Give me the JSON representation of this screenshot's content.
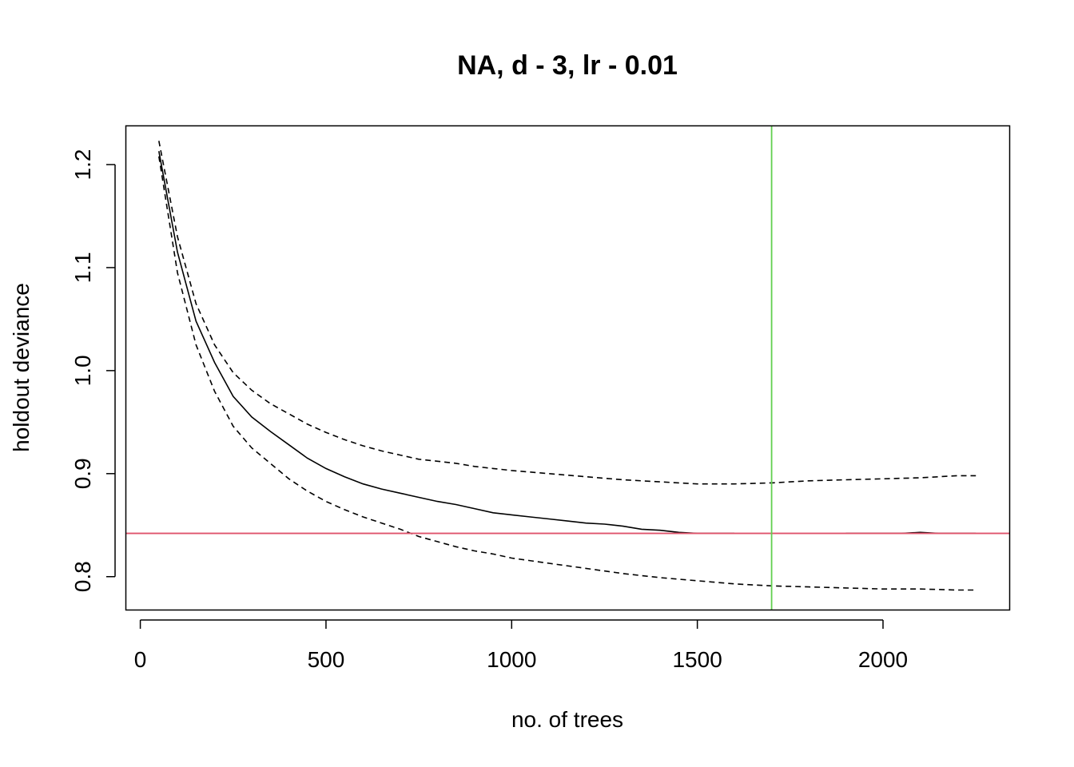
{
  "chart_data": {
    "type": "line",
    "title": "NA, d - 3, lr - 0.01",
    "xlabel": "no. of trees",
    "ylabel": "holdout deviance",
    "xlim": [
      -40,
      2340
    ],
    "ylim": [
      0.768,
      1.238
    ],
    "xticks": [
      "0",
      "500",
      "1000",
      "1500",
      "2000"
    ],
    "yticks": [
      "0.8",
      "0.9",
      "1.0",
      "1.1",
      "1.2"
    ],
    "grid": false,
    "legend": "none",
    "series": [
      {
        "style": "solid",
        "color": "#000000",
        "points": [
          [
            50,
            1.213
          ],
          [
            100,
            1.115
          ],
          [
            150,
            1.048
          ],
          [
            200,
            1.008
          ],
          [
            250,
            0.975
          ],
          [
            300,
            0.955
          ],
          [
            350,
            0.941
          ],
          [
            400,
            0.928
          ],
          [
            450,
            0.915
          ],
          [
            500,
            0.905
          ],
          [
            550,
            0.897
          ],
          [
            600,
            0.89
          ],
          [
            650,
            0.885
          ],
          [
            700,
            0.881
          ],
          [
            750,
            0.877
          ],
          [
            800,
            0.873
          ],
          [
            850,
            0.87
          ],
          [
            900,
            0.866
          ],
          [
            950,
            0.862
          ],
          [
            1000,
            0.86
          ],
          [
            1050,
            0.858
          ],
          [
            1100,
            0.856
          ],
          [
            1150,
            0.854
          ],
          [
            1200,
            0.852
          ],
          [
            1250,
            0.851
          ],
          [
            1300,
            0.849
          ],
          [
            1350,
            0.846
          ],
          [
            1400,
            0.845
          ],
          [
            1450,
            0.843
          ],
          [
            1500,
            0.842
          ],
          [
            1550,
            0.842
          ],
          [
            1600,
            0.842
          ]
        ]
      },
      {
        "style": "solid",
        "color": "#000000",
        "points": [
          [
            1900,
            0.842
          ],
          [
            1950,
            0.842
          ],
          [
            2000,
            0.842
          ],
          [
            2050,
            0.842
          ],
          [
            2100,
            0.843
          ],
          [
            2150,
            0.842
          ],
          [
            2200,
            0.842
          ],
          [
            2250,
            0.842
          ]
        ]
      },
      {
        "style": "dashed",
        "color": "#000000",
        "points": [
          [
            50,
            1.223
          ],
          [
            100,
            1.13
          ],
          [
            150,
            1.065
          ],
          [
            200,
            1.025
          ],
          [
            250,
            0.998
          ],
          [
            300,
            0.981
          ],
          [
            350,
            0.968
          ],
          [
            400,
            0.958
          ],
          [
            450,
            0.948
          ],
          [
            500,
            0.94
          ],
          [
            550,
            0.933
          ],
          [
            600,
            0.927
          ],
          [
            650,
            0.922
          ],
          [
            700,
            0.918
          ],
          [
            750,
            0.914
          ],
          [
            800,
            0.912
          ],
          [
            850,
            0.91
          ],
          [
            900,
            0.907
          ],
          [
            950,
            0.905
          ],
          [
            1000,
            0.903
          ],
          [
            1100,
            0.9
          ],
          [
            1200,
            0.897
          ],
          [
            1300,
            0.894
          ],
          [
            1400,
            0.892
          ],
          [
            1500,
            0.89
          ],
          [
            1600,
            0.89
          ],
          [
            1700,
            0.891
          ],
          [
            1800,
            0.893
          ],
          [
            1900,
            0.894
          ],
          [
            2000,
            0.895
          ],
          [
            2100,
            0.896
          ],
          [
            2200,
            0.898
          ],
          [
            2250,
            0.898
          ]
        ]
      },
      {
        "style": "dashed",
        "color": "#000000",
        "points": [
          [
            50,
            1.208
          ],
          [
            100,
            1.095
          ],
          [
            150,
            1.025
          ],
          [
            200,
            0.98
          ],
          [
            250,
            0.946
          ],
          [
            300,
            0.925
          ],
          [
            350,
            0.91
          ],
          [
            400,
            0.895
          ],
          [
            450,
            0.883
          ],
          [
            500,
            0.873
          ],
          [
            550,
            0.865
          ],
          [
            600,
            0.858
          ],
          [
            650,
            0.852
          ],
          [
            700,
            0.846
          ],
          [
            750,
            0.839
          ],
          [
            800,
            0.834
          ],
          [
            850,
            0.829
          ],
          [
            900,
            0.825
          ],
          [
            950,
            0.822
          ],
          [
            1000,
            0.818
          ],
          [
            1100,
            0.813
          ],
          [
            1200,
            0.808
          ],
          [
            1300,
            0.803
          ],
          [
            1400,
            0.799
          ],
          [
            1500,
            0.796
          ],
          [
            1600,
            0.793
          ],
          [
            1700,
            0.791
          ],
          [
            1800,
            0.79
          ],
          [
            1900,
            0.789
          ],
          [
            2000,
            0.788
          ],
          [
            2100,
            0.788
          ],
          [
            2200,
            0.787
          ],
          [
            2250,
            0.787
          ]
        ]
      }
    ],
    "reference_lines": [
      {
        "orientation": "horizontal",
        "value": 0.842,
        "color": "#DF536B"
      },
      {
        "orientation": "vertical",
        "value": 1700,
        "color": "#61D04F"
      }
    ]
  }
}
